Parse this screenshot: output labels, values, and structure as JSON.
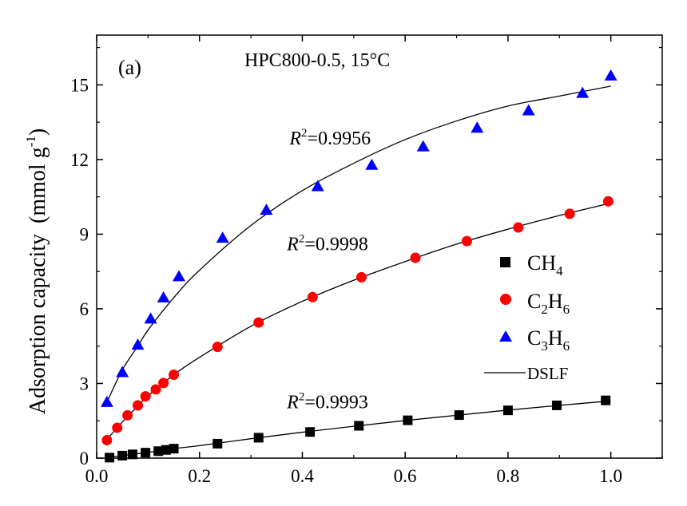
{
  "chart_data": {
    "type": "scatter",
    "title": "HPC800-0.5, 15°C",
    "panel_label": "(a)",
    "xlabel": "",
    "ylabel": {
      "main": "Adsorption capacity",
      "unit_open": "(mmol g",
      "unit_sup": "-1",
      "unit_close": ")"
    },
    "xlim": [
      0,
      1.1
    ],
    "ylim": [
      0,
      17
    ],
    "xticks": [
      "0.0",
      "0.2",
      "0.4",
      "0.6",
      "0.8",
      "1.0"
    ],
    "yticks": [
      "0",
      "3",
      "6",
      "9",
      "12",
      "15"
    ],
    "legend_position": "center-right",
    "series": [
      {
        "name": "CH4",
        "name_base": "CH",
        "name_sub": "4",
        "color": "#000000",
        "marker": "square",
        "x": [
          0.025,
          0.05,
          0.07,
          0.095,
          0.12,
          0.135,
          0.15,
          0.235,
          0.315,
          0.415,
          0.51,
          0.605,
          0.705,
          0.8,
          0.895,
          0.99
        ],
        "y": [
          0.02,
          0.1,
          0.15,
          0.22,
          0.28,
          0.33,
          0.38,
          0.58,
          0.82,
          1.05,
          1.3,
          1.52,
          1.73,
          1.92,
          2.12,
          2.32
        ]
      },
      {
        "name": "C2H6",
        "name_base": "C",
        "name_sub": "2",
        "name_base2": "H",
        "name_sub2": "6",
        "color": "#ff0000",
        "marker": "circle",
        "x": [
          0.02,
          0.04,
          0.06,
          0.08,
          0.095,
          0.115,
          0.13,
          0.15,
          0.235,
          0.315,
          0.42,
          0.515,
          0.62,
          0.72,
          0.82,
          0.92,
          0.995
        ],
        "y": [
          0.72,
          1.22,
          1.72,
          2.12,
          2.48,
          2.76,
          3.02,
          3.35,
          4.47,
          5.45,
          6.47,
          7.27,
          8.05,
          8.72,
          9.27,
          9.82,
          10.32
        ]
      },
      {
        "name": "C3H6",
        "name_base": "C",
        "name_sub": "3",
        "name_base2": "H",
        "name_sub2": "6",
        "color": "#0000ff",
        "marker": "triangle",
        "x": [
          0.02,
          0.05,
          0.08,
          0.105,
          0.13,
          0.16,
          0.245,
          0.33,
          0.43,
          0.535,
          0.635,
          0.74,
          0.84,
          0.945,
          1.0
        ],
        "y": [
          2.25,
          3.45,
          4.55,
          5.6,
          6.45,
          7.3,
          8.85,
          9.97,
          10.92,
          11.78,
          12.52,
          13.27,
          13.97,
          14.67,
          15.37
        ]
      }
    ],
    "fits": [
      {
        "name": "DSLF",
        "color": "#000000",
        "x": [
          0.02,
          0.05,
          0.1,
          0.15,
          0.2,
          0.3,
          0.4,
          0.5,
          0.6,
          0.7,
          0.8,
          0.9,
          1.0
        ],
        "y": [
          0.02,
          0.1,
          0.23,
          0.38,
          0.5,
          0.78,
          1.04,
          1.28,
          1.51,
          1.72,
          1.93,
          2.12,
          2.3
        ]
      },
      {
        "name": "DSLF",
        "color": "#000000",
        "x": [
          0.02,
          0.05,
          0.1,
          0.15,
          0.2,
          0.3,
          0.4,
          0.5,
          0.6,
          0.7,
          0.8,
          0.9,
          1.0
        ],
        "y": [
          0.75,
          1.45,
          2.5,
          3.35,
          4.05,
          5.3,
          6.3,
          7.15,
          7.9,
          8.6,
          9.2,
          9.75,
          10.25
        ]
      },
      {
        "name": "DSLF",
        "color": "#000000",
        "x": [
          0.02,
          0.05,
          0.08,
          0.1,
          0.15,
          0.2,
          0.3,
          0.4,
          0.5,
          0.6,
          0.7,
          0.8,
          0.9,
          1.0
        ],
        "y": [
          2.25,
          3.55,
          4.5,
          5.15,
          6.45,
          7.55,
          9.35,
          10.75,
          11.85,
          12.8,
          13.55,
          14.15,
          14.55,
          14.95
        ]
      }
    ],
    "annotations": [
      {
        "text_prefix": "R",
        "text_sup": "2",
        "text_value": "=0.9956",
        "x": 0.375,
        "y": 12.6
      },
      {
        "text_prefix": "R",
        "text_sup": "2",
        "text_value": "=0.9998",
        "x": 0.37,
        "y": 8.35
      },
      {
        "text_prefix": "R",
        "text_sup": "2",
        "text_value": "=0.9993",
        "x": 0.37,
        "y": 2.0
      }
    ],
    "legend_line_label": "DSLF"
  }
}
